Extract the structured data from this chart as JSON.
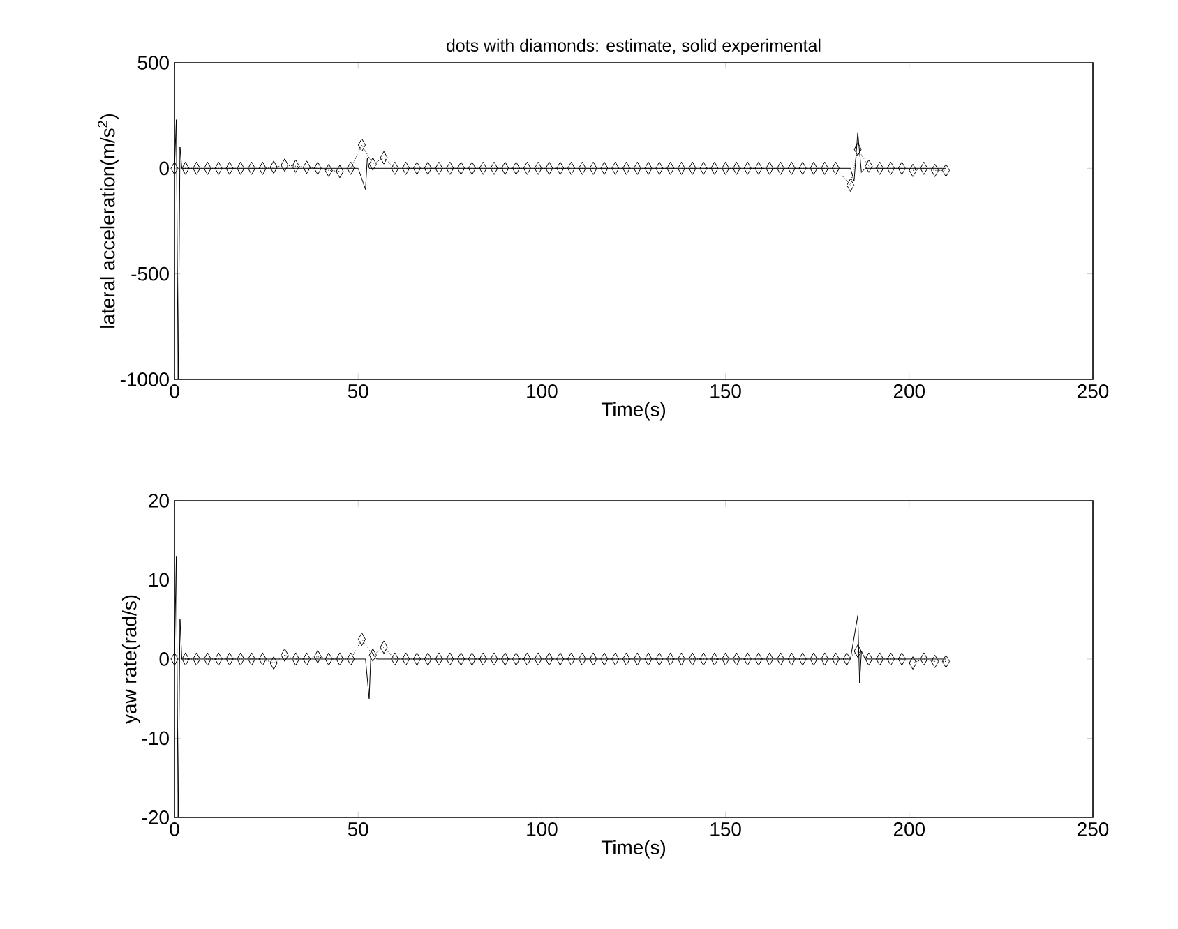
{
  "chart_data": [
    {
      "type": "line",
      "title": "dots with diamonds: estimate, solid experimental",
      "xlabel": "Time(s)",
      "ylabel": "lateral acceleration(m/s$^{2}$)",
      "xlim": [
        0,
        250
      ],
      "xticks": [
        0,
        50,
        100,
        150,
        200,
        250
      ],
      "ylim": [
        -1000,
        500
      ],
      "yticks": [
        -1000,
        -500,
        0,
        500
      ],
      "series": [
        {
          "color": "#000000",
          "marker": "diamond",
          "line_style": "dotted",
          "x": [
            0,
            3,
            6,
            9,
            12,
            15,
            18,
            21,
            24,
            27,
            30,
            33,
            36,
            39,
            42,
            45,
            48,
            51,
            54,
            57,
            60,
            63,
            66,
            69,
            72,
            75,
            78,
            81,
            84,
            87,
            90,
            93,
            96,
            99,
            102,
            105,
            108,
            111,
            114,
            117,
            120,
            123,
            126,
            129,
            132,
            135,
            138,
            141,
            144,
            147,
            150,
            153,
            156,
            159,
            162,
            165,
            168,
            171,
            174,
            177,
            180,
            184,
            186,
            189,
            192,
            195,
            198,
            201,
            204,
            207,
            210
          ],
          "values": [
            0,
            0,
            0,
            0,
            0,
            0,
            0,
            0,
            0,
            5,
            15,
            10,
            5,
            0,
            -10,
            -15,
            0,
            110,
            20,
            50,
            0,
            0,
            0,
            0,
            0,
            0,
            0,
            0,
            0,
            0,
            0,
            0,
            0,
            0,
            0,
            0,
            0,
            0,
            0,
            0,
            0,
            0,
            0,
            0,
            0,
            0,
            0,
            0,
            0,
            0,
            0,
            0,
            0,
            0,
            0,
            0,
            0,
            0,
            0,
            0,
            0,
            -80,
            90,
            10,
            0,
            0,
            0,
            -10,
            0,
            -10,
            -10
          ]
        },
        {
          "color": "#000000",
          "marker": "none",
          "line_style": "solid",
          "x": [
            0,
            0.5,
            1,
            1.5,
            2,
            50,
            52,
            52.5,
            53,
            55,
            184,
            185,
            186,
            187,
            188,
            210
          ],
          "values": [
            0,
            230,
            -1000,
            100,
            0,
            0,
            -100,
            50,
            0,
            0,
            0,
            -60,
            170,
            -20,
            0,
            0
          ]
        }
      ]
    },
    {
      "type": "line",
      "xlabel": "Time(s)",
      "ylabel": "yaw rate(rad/s)",
      "xlim": [
        0,
        250
      ],
      "xticks": [
        0,
        50,
        100,
        150,
        200,
        250
      ],
      "ylim": [
        -20,
        20
      ],
      "yticks": [
        -20,
        -10,
        0,
        10,
        20
      ],
      "series": [
        {
          "color": "#000000",
          "marker": "diamond",
          "line_style": "dotted",
          "x": [
            0,
            3,
            6,
            9,
            12,
            15,
            18,
            21,
            24,
            27,
            30,
            33,
            36,
            39,
            42,
            45,
            48,
            51,
            54,
            57,
            60,
            63,
            66,
            69,
            72,
            75,
            78,
            81,
            84,
            87,
            90,
            93,
            96,
            99,
            102,
            105,
            108,
            111,
            114,
            117,
            120,
            123,
            126,
            129,
            132,
            135,
            138,
            141,
            144,
            147,
            150,
            153,
            156,
            159,
            162,
            165,
            168,
            171,
            174,
            177,
            180,
            183,
            186,
            189,
            192,
            195,
            198,
            201,
            204,
            207,
            210
          ],
          "values": [
            0,
            0,
            0,
            0,
            0,
            0,
            0,
            0,
            0,
            -0.5,
            0.5,
            0,
            0,
            0.3,
            0,
            0,
            0,
            2.5,
            0.5,
            1.5,
            0,
            0,
            0,
            0,
            0,
            0,
            0,
            0,
            0,
            0,
            0,
            0,
            0,
            0,
            0,
            0,
            0,
            0,
            0,
            0,
            0,
            0,
            0,
            0,
            0,
            0,
            0,
            0,
            0,
            0,
            0,
            0,
            0,
            0,
            0,
            0,
            0,
            0,
            0,
            0,
            0,
            0,
            1,
            0,
            0,
            0,
            0,
            -0.5,
            0,
            -0.3,
            -0.3
          ]
        },
        {
          "color": "#000000",
          "marker": "none",
          "line_style": "solid",
          "x": [
            0,
            0.5,
            1,
            1.5,
            2,
            50,
            52,
            53,
            53.5,
            55,
            184,
            186,
            186.5,
            187,
            188,
            210
          ],
          "values": [
            0,
            13,
            -20,
            5,
            0,
            0,
            0,
            -5,
            1,
            0,
            0,
            5.5,
            -3,
            1,
            0,
            0
          ]
        }
      ]
    }
  ]
}
